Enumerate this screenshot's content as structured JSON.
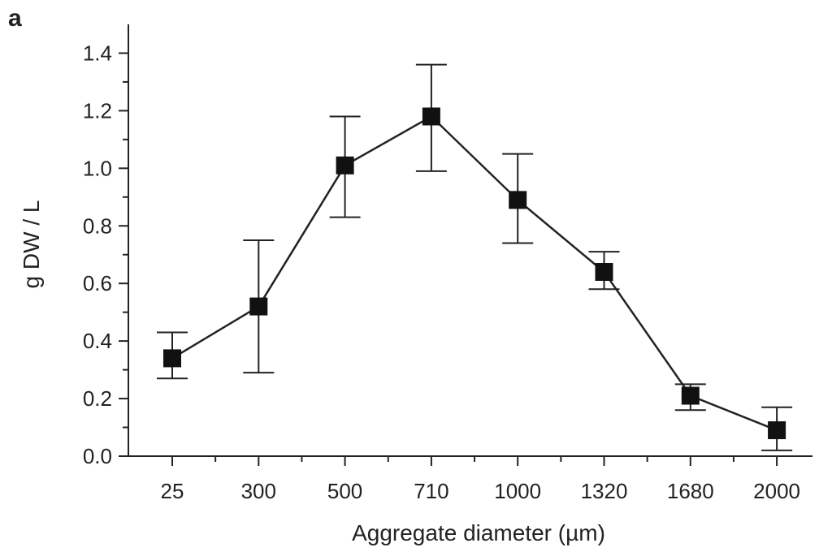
{
  "panel_label": "a",
  "colors": {
    "line": "#222222",
    "marker": "#111111",
    "background": "#ffffff"
  },
  "chart_data": {
    "type": "line",
    "title": "",
    "xlabel": "Aggregate diameter (µm)",
    "ylabel": "g DW / L",
    "categories": [
      "25",
      "300",
      "500",
      "710",
      "1000",
      "1320",
      "1680",
      "2000"
    ],
    "ylim": [
      0,
      1.5
    ],
    "yticks": [
      0.0,
      0.2,
      0.4,
      0.6,
      0.8,
      1.0,
      1.2,
      1.4
    ],
    "ytick_labels": [
      "0.0",
      "0.2",
      "0.4",
      "0.6",
      "0.8",
      "1.0",
      "1.2",
      "1.4"
    ],
    "grid": false,
    "legend": "none",
    "series": [
      {
        "marker": "square",
        "values": [
          0.34,
          0.52,
          1.01,
          1.18,
          0.89,
          0.64,
          0.21,
          0.09
        ],
        "error_low": [
          0.27,
          0.29,
          0.83,
          0.99,
          0.74,
          0.58,
          0.16,
          0.02
        ],
        "error_high": [
          0.43,
          0.75,
          1.18,
          1.36,
          1.05,
          0.71,
          0.25,
          0.17
        ]
      }
    ]
  }
}
